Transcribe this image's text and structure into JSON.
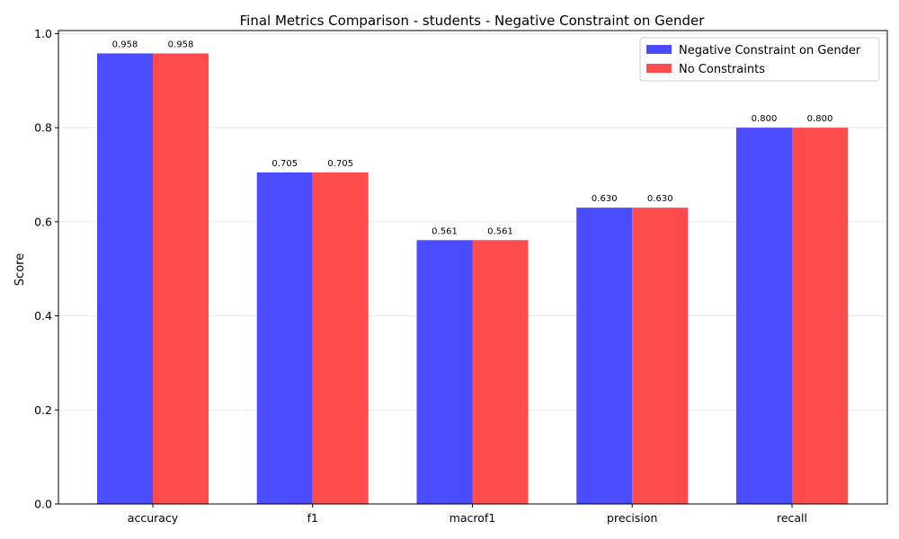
{
  "chart_data": {
    "type": "bar",
    "title": "Final Metrics Comparison - students - Negative Constraint on Gender",
    "xlabel": "",
    "ylabel": "Score",
    "categories": [
      "accuracy",
      "f1",
      "macrof1",
      "precision",
      "recall"
    ],
    "series": [
      {
        "name": "Negative Constraint on Gender",
        "color": "#4b4bff",
        "values": [
          0.958,
          0.705,
          0.561,
          0.63,
          0.8
        ],
        "labels": [
          "0.958",
          "0.705",
          "0.561",
          "0.630",
          "0.800"
        ]
      },
      {
        "name": "No Constraints",
        "color": "#ff4b4b",
        "values": [
          0.958,
          0.705,
          0.561,
          0.63,
          0.8
        ],
        "labels": [
          "0.958",
          "0.705",
          "0.561",
          "0.630",
          "0.800"
        ]
      }
    ],
    "ylim": [
      0,
      1.0066
    ],
    "yticks": [
      0.0,
      0.2,
      0.4,
      0.6,
      0.8,
      1.0
    ],
    "ytick_labels": [
      "0.0",
      "0.2",
      "0.4",
      "0.6",
      "0.8",
      "1.0"
    ],
    "grid": "y",
    "legend_position": "top-right"
  }
}
